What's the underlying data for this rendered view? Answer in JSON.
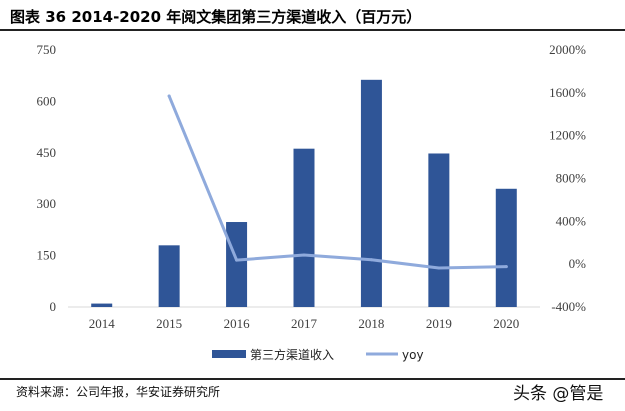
{
  "header": {
    "title": "图表 36 2014-2020 年阅文集团第三方渠道收入（百万元）"
  },
  "footer": {
    "source": "资料来源：公司年报，华安证券研究所",
    "watermark": "头条 @管是"
  },
  "chart_data": {
    "type": "bar",
    "categories": [
      "2014",
      "2015",
      "2016",
      "2017",
      "2018",
      "2019",
      "2020"
    ],
    "series": [
      {
        "name": "第三方渠道收入",
        "type": "bar",
        "axis": "left",
        "values": [
          10,
          180,
          248,
          462,
          663,
          448,
          345
        ]
      },
      {
        "name": "yoy",
        "type": "line",
        "axis": "right",
        "values": [
          null,
          1570,
          38,
          86,
          41,
          -36,
          -23
        ]
      }
    ],
    "y_left": {
      "min": 0,
      "max": 750,
      "ticks": [
        "0",
        "150",
        "300",
        "450",
        "600",
        "750"
      ]
    },
    "y_right": {
      "min": -400,
      "max": 2000,
      "ticks": [
        "-400%",
        "0%",
        "400%",
        "800%",
        "1200%",
        "1600%",
        "2000%"
      ]
    },
    "legend": {
      "position": "bottom"
    },
    "colors": {
      "bar": "#2F5597",
      "line": "#8FAADC",
      "axis": "#d9d9d9"
    },
    "grid": false
  }
}
